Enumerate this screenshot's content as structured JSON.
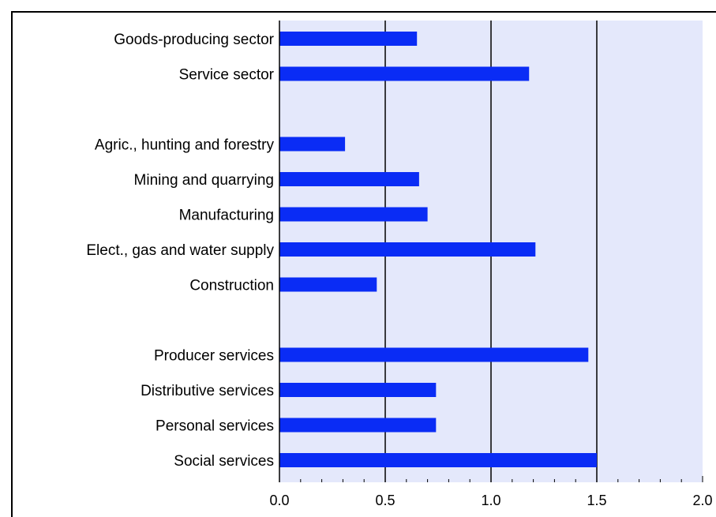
{
  "chart_data": {
    "type": "bar",
    "orientation": "horizontal",
    "title": "",
    "xlabel": "",
    "ylabel": "",
    "xlim": [
      0,
      2.0
    ],
    "xticks": [
      0.0,
      0.5,
      1.0,
      1.5,
      2.0
    ],
    "tick_labels": [
      "0.0",
      "0.5",
      "1.0",
      "1.5",
      "2.0"
    ],
    "grid": "vertical lines at 0.5, 1.0, 1.5",
    "legend": "none",
    "bar_color": "#0a2cf5",
    "plot_background": "#e4e8fb",
    "categories": [
      "Goods-producing sector",
      "Service sector",
      "",
      "Agric., hunting and forestry",
      "Mining and quarrying",
      "Manufacturing",
      "Elect., gas and water supply",
      "Construction",
      "",
      "Producer services",
      "Distributive services",
      "Personal services",
      "Social services"
    ],
    "values": [
      0.65,
      1.18,
      null,
      0.31,
      0.66,
      0.7,
      1.21,
      0.46,
      null,
      1.46,
      0.74,
      0.74,
      1.5
    ]
  }
}
